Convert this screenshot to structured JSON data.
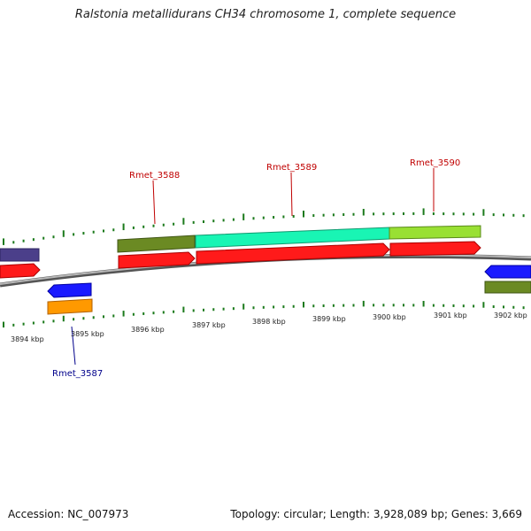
{
  "title": "Ralstonia metallidurans CH34 chromosome 1, complete sequence",
  "footer": {
    "accession": "Accession: NC_007973",
    "topology": "Topology: circular; Length: 3,928,089 bp; Genes: 3,669"
  },
  "genes": [
    {
      "id": "Rmet_3587",
      "color": "#00008b"
    },
    {
      "id": "Rmet_3588",
      "color": "#c00000"
    },
    {
      "id": "Rmet_3589",
      "color": "#c00000"
    },
    {
      "id": "Rmet_3590",
      "color": "#c00000"
    }
  ],
  "ticks": [
    "3894 kbp",
    "3895 kbp",
    "3896 kbp",
    "3897 kbp",
    "3898 kbp",
    "3899 kbp",
    "3900 kbp",
    "3901 kbp",
    "3902 kbp"
  ],
  "colors": {
    "cds": "#ff1a1a",
    "dark_olive": "#6b8a23",
    "aquamarine": "#19f5b4",
    "yellowgreen": "#99e033",
    "blue": "#1a1aff",
    "orange": "#ff9900",
    "slate": "#4b3f8a",
    "backbone": "#909090",
    "tick": "#1b7a1b"
  }
}
